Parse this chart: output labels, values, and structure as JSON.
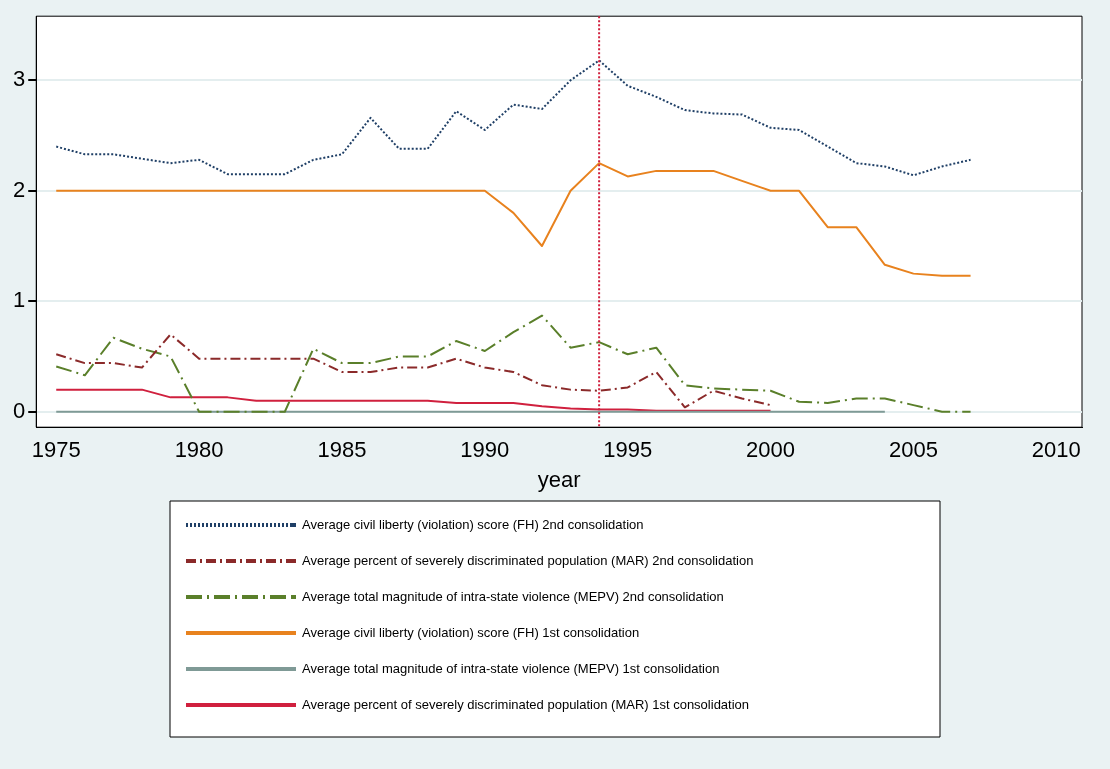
{
  "chart_data": {
    "type": "line",
    "xlabel": "year",
    "x": [
      1975,
      1976,
      1977,
      1978,
      1979,
      1980,
      1981,
      1982,
      1983,
      1984,
      1985,
      1986,
      1987,
      1988,
      1989,
      1990,
      1991,
      1992,
      1993,
      1994,
      1995,
      1996,
      1997,
      1998,
      1999,
      2000,
      2001,
      2002,
      2003,
      2004,
      2005,
      2006,
      2007
    ],
    "xlim": [
      1974.3,
      2010.9
    ],
    "xticks": [
      1975,
      1980,
      1985,
      1990,
      1995,
      2000,
      2005,
      2010
    ],
    "ylim": [
      -0.14,
      3.58
    ],
    "yticks": [
      0,
      1,
      2,
      3
    ],
    "grid": "y",
    "legend": "bottom",
    "marker": "none",
    "ref_lines": [
      {
        "axis": "x",
        "value": 1994,
        "color": "#d0203e",
        "line_style": "dotted"
      }
    ],
    "series": [
      {
        "name": "Average civil liberty (violation) score (FH) 2nd consolidation",
        "color": "#1f3f66",
        "line_style": "dotted",
        "values": [
          2.4,
          2.33,
          2.33,
          2.29,
          2.25,
          2.28,
          2.15,
          2.15,
          2.15,
          2.28,
          2.33,
          2.66,
          2.38,
          2.38,
          2.72,
          2.55,
          2.78,
          2.74,
          3.0,
          3.18,
          2.95,
          2.85,
          2.73,
          2.7,
          2.69,
          2.57,
          2.55,
          2.4,
          2.25,
          2.22,
          2.14,
          2.22,
          2.28
        ]
      },
      {
        "name": "Average percent of severely discriminated population (MAR) 2nd consolidation",
        "color": "#8b2a2a",
        "line_style": "dashdot",
        "values": [
          0.52,
          0.44,
          0.44,
          0.4,
          0.7,
          0.48,
          0.48,
          0.48,
          0.48,
          0.48,
          0.36,
          0.36,
          0.4,
          0.4,
          0.48,
          0.4,
          0.36,
          0.24,
          0.2,
          0.19,
          0.22,
          0.36,
          0.04,
          0.19,
          0.12,
          0.06,
          null,
          null,
          null,
          null,
          null,
          null,
          null
        ]
      },
      {
        "name": "Average total magnitude of intra-state violence (MEPV) 2nd consolidation",
        "color": "#5a7f2a",
        "line_style": "longdashdot",
        "values": [
          0.41,
          0.33,
          0.67,
          0.57,
          0.5,
          0,
          0,
          0,
          0,
          0.57,
          0.44,
          0.44,
          0.5,
          0.5,
          0.64,
          0.55,
          0.72,
          0.87,
          0.58,
          0.63,
          0.52,
          0.58,
          0.24,
          0.21,
          0.2,
          0.19,
          0.09,
          0.08,
          0.12,
          0.12,
          0.06,
          0,
          0
        ]
      },
      {
        "name": "Average civil liberty (violation) score (FH) 1st consolidation",
        "color": "#e8821e",
        "line_style": "solid",
        "values": [
          2,
          2,
          2,
          2,
          2,
          2,
          2,
          2,
          2,
          2,
          2,
          2,
          2,
          2,
          2,
          2,
          1.8,
          1.5,
          2,
          2.25,
          2.13,
          2.18,
          2.18,
          2.18,
          2.09,
          2,
          2,
          1.67,
          1.67,
          1.33,
          1.25,
          1.23,
          1.23
        ]
      },
      {
        "name": "Average total magnitude of intra-state violence (MEPV) 1st consolidation",
        "color": "#7f9a96",
        "line_style": "solid",
        "values": [
          0,
          0,
          0,
          0,
          0,
          0,
          0,
          0,
          0,
          0,
          0,
          0,
          0,
          0,
          0,
          0,
          0,
          0,
          0,
          0,
          0,
          0,
          0,
          0,
          0,
          0,
          0,
          0,
          0,
          0,
          null,
          null,
          null
        ]
      },
      {
        "name": "Average percent of severely discriminated population (MAR) 1st consolidation",
        "color": "#d0203e",
        "line_style": "solid",
        "values": [
          0.2,
          0.2,
          0.2,
          0.2,
          0.13,
          0.13,
          0.13,
          0.1,
          0.1,
          0.1,
          0.1,
          0.1,
          0.1,
          0.1,
          0.08,
          0.08,
          0.08,
          0.05,
          0.03,
          0.02,
          0.02,
          0.01,
          0.01,
          0.01,
          0.01,
          0.01,
          null,
          null,
          null,
          null,
          null,
          null,
          null
        ]
      }
    ]
  }
}
